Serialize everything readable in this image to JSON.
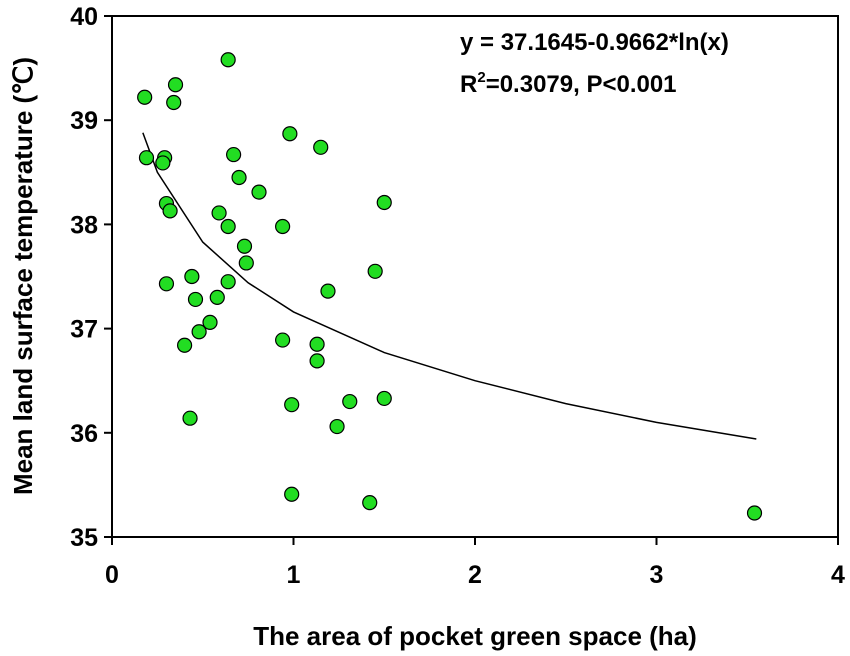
{
  "chart_data": {
    "type": "scatter",
    "xlabel": "The area of pocket green space (ha)",
    "ylabel": "Mean land surface temperature (℃)",
    "annotations": [
      "y = 37.1645-0.9662*ln(x)",
      [
        "R",
        "2",
        "=0.3079, P<0.001"
      ]
    ],
    "xlim": [
      0,
      4
    ],
    "xticks": [
      0,
      1,
      2,
      3,
      4
    ],
    "ylim": [
      35,
      40
    ],
    "yticks": [
      35,
      36,
      37,
      38,
      39,
      40
    ],
    "color": "#22dd22",
    "x": [
      0.18,
      0.19,
      0.64,
      0.35,
      0.34,
      0.29,
      0.28,
      0.98,
      1.15,
      0.67,
      0.7,
      0.81,
      0.3,
      0.32,
      1.5,
      0.59,
      0.64,
      0.94,
      0.73,
      0.74,
      0.44,
      1.45,
      0.3,
      0.64,
      0.46,
      0.58,
      1.19,
      0.54,
      0.48,
      0.4,
      0.94,
      1.13,
      1.13,
      1.31,
      1.5,
      0.99,
      0.43,
      1.24,
      0.99,
      1.42,
      3.54
    ],
    "values": [
      39.22,
      38.64,
      39.58,
      39.34,
      39.17,
      38.64,
      38.59,
      38.87,
      38.74,
      38.67,
      38.45,
      38.31,
      38.2,
      38.13,
      38.21,
      38.11,
      37.98,
      37.98,
      37.79,
      37.63,
      37.5,
      37.55,
      37.43,
      37.45,
      37.28,
      37.3,
      37.36,
      37.06,
      36.97,
      36.84,
      36.89,
      36.85,
      36.69,
      36.3,
      36.33,
      36.27,
      36.14,
      36.06,
      35.41,
      35.33,
      35.23
    ],
    "fit": {
      "type": "line",
      "color": "#000000",
      "x": [
        0.17,
        0.25,
        0.5,
        0.75,
        1,
        1.5,
        2,
        2.5,
        3,
        3.55
      ],
      "values": [
        38.88,
        38.5,
        37.83,
        37.44,
        37.16,
        36.77,
        36.5,
        36.28,
        36.1,
        35.94
      ]
    }
  }
}
